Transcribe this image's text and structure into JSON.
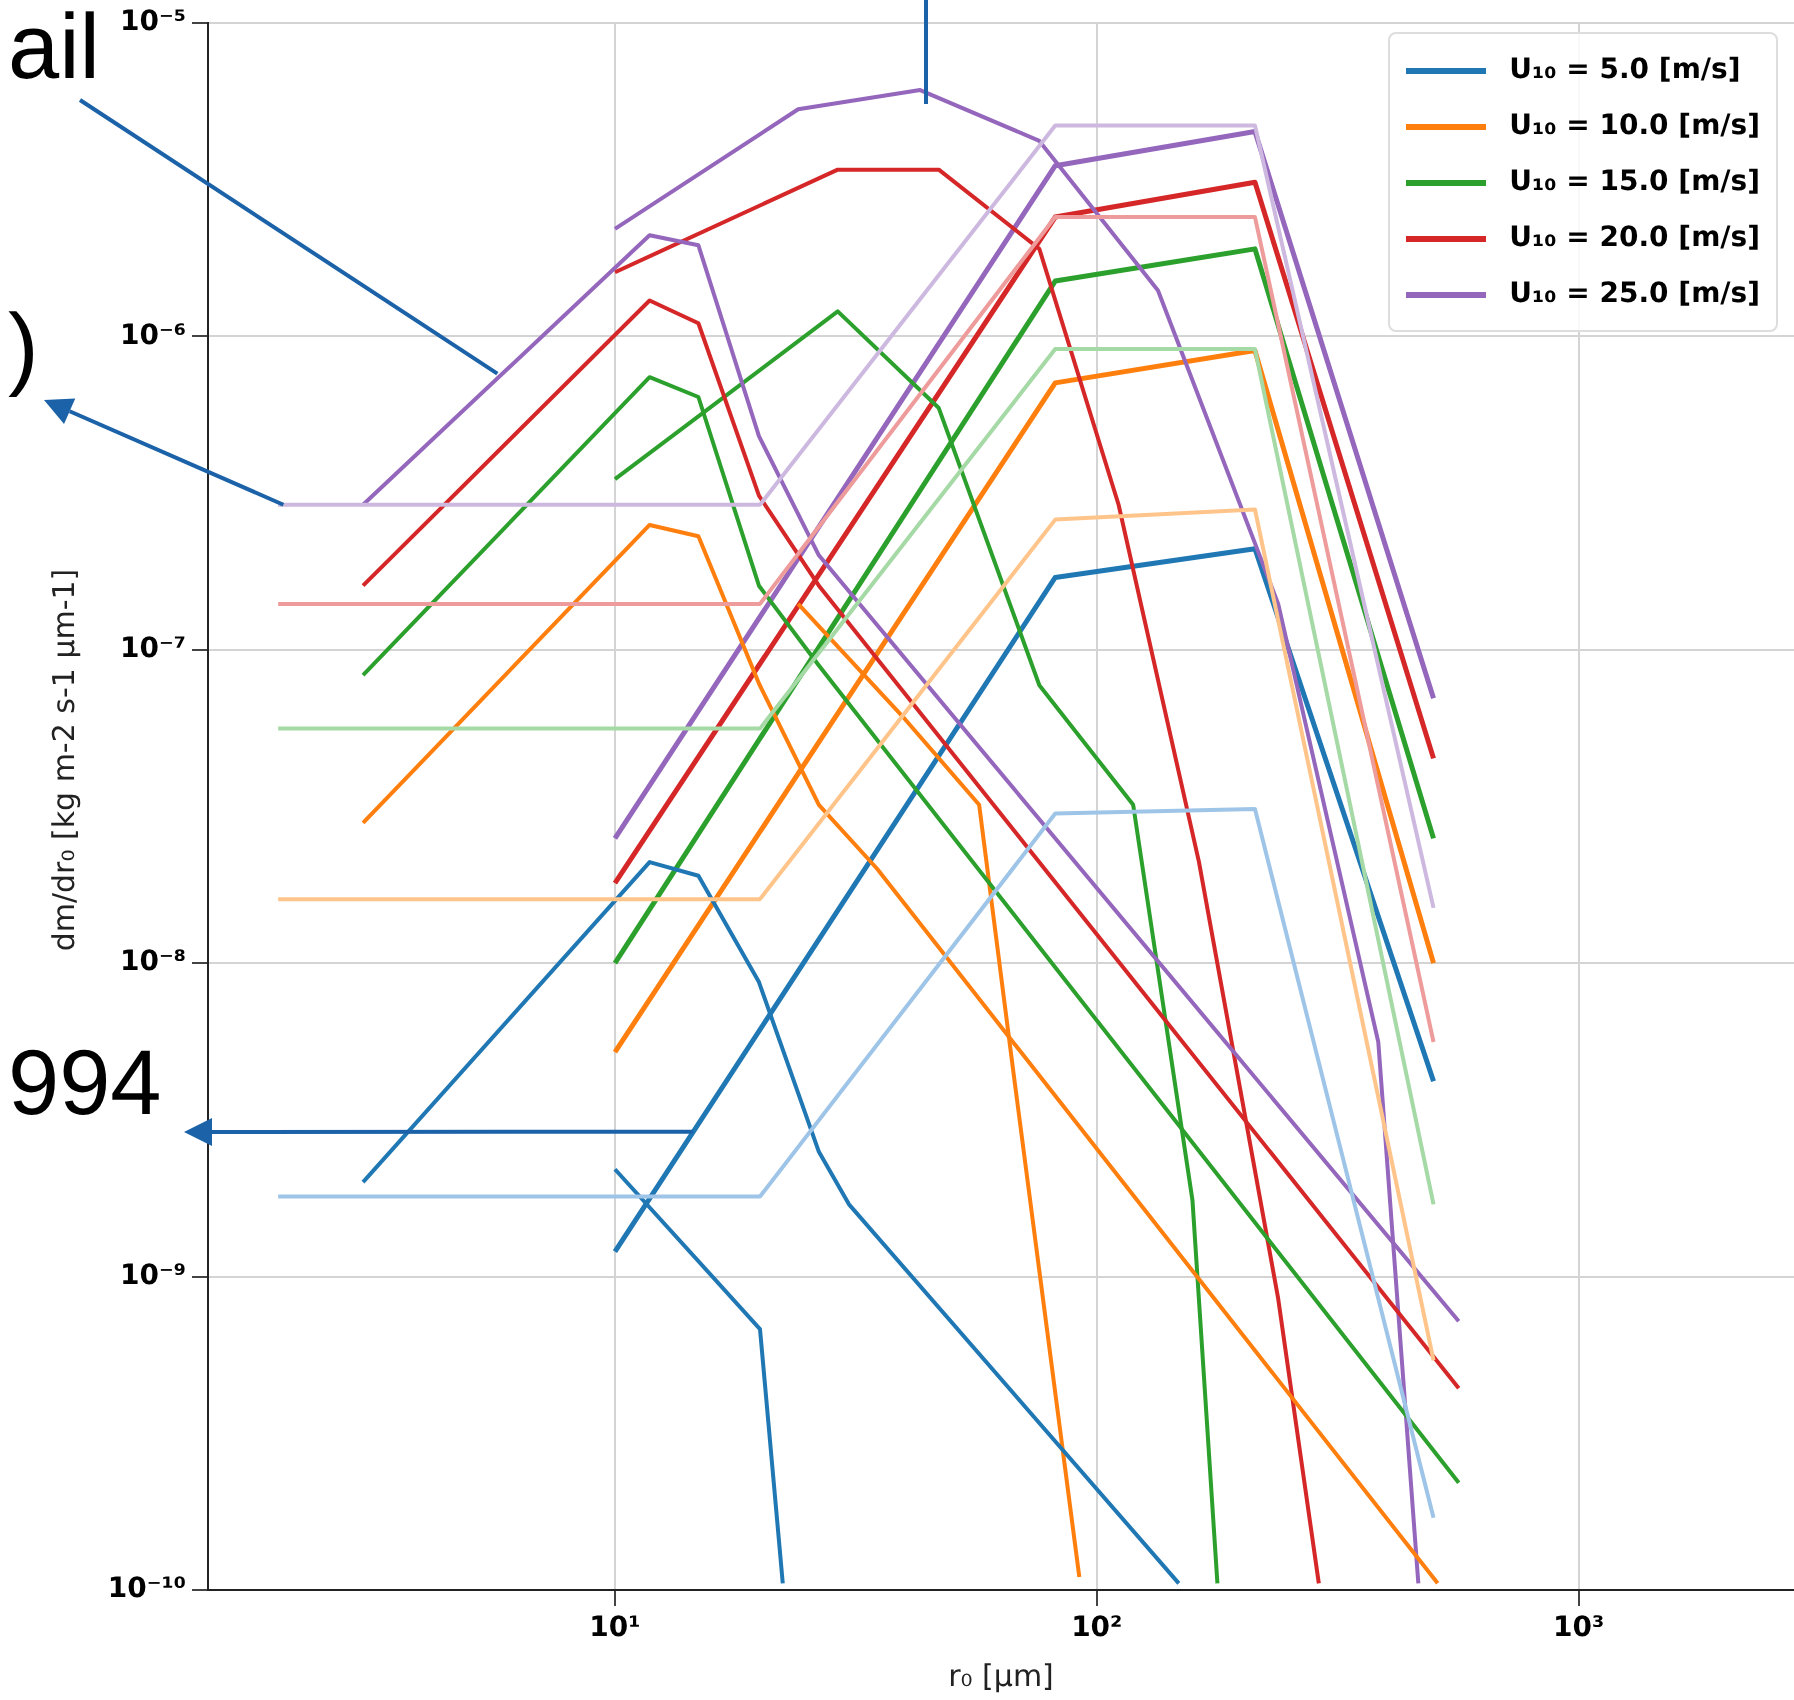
{
  "chart_data": {
    "type": "line",
    "xlabel": "r₀ [µm]",
    "ylabel": "dm/dr₀ [kg m-2 s-1 µm-1]",
    "annotations": [
      {
        "text": "ail",
        "x": 5.7,
        "y": 7.6e-07
      },
      {
        "text": ")",
        "x": 2.05,
        "y": 2.9e-07
      },
      {
        "text": "994",
        "x": 14.5,
        "y": 2.9e-09
      }
    ],
    "log": "xy",
    "grid": true,
    "legend": "top right",
    "xlim": [
      1.43,
      2800
    ],
    "xticks": [
      {
        "value": 10,
        "label": "10¹"
      },
      {
        "value": 100,
        "label": "10²"
      },
      {
        "value": 1000,
        "label": "10³"
      }
    ],
    "ylim": [
      1e-10,
      1e-05
    ],
    "yticks": [
      {
        "value": 1e-10,
        "label": "10⁻¹⁰"
      },
      {
        "value": 1e-09,
        "label": "10⁻⁹"
      },
      {
        "value": 1e-08,
        "label": "10⁻⁸"
      },
      {
        "value": 1e-07,
        "label": "10⁻⁷"
      },
      {
        "value": 1e-06,
        "label": "10⁻⁶"
      },
      {
        "value": 1e-05,
        "label": "10⁻⁵"
      }
    ],
    "series": [
      {
        "color": "#9ec5e8",
        "x": [
          2,
          20,
          82,
          213,
          500
        ],
        "values": [
          1.8e-09,
          1.8e-09,
          3e-08,
          3.1e-08,
          1.7e-10
        ]
      },
      {
        "color": "#ffc48a",
        "x": [
          2,
          20,
          82,
          213,
          500
        ],
        "values": [
          1.6e-08,
          1.6e-08,
          2.6e-07,
          2.8e-07,
          5.4e-10
        ]
      },
      {
        "color": "#a5d9a5",
        "x": [
          2,
          20,
          82,
          213,
          500
        ],
        "values": [
          5.6e-08,
          5.6e-08,
          9.1e-07,
          9.1e-07,
          1.7e-09
        ]
      },
      {
        "color": "#ee9b9b",
        "x": [
          2,
          20,
          82,
          213,
          500
        ],
        "values": [
          1.4e-07,
          1.4e-07,
          2.4e-06,
          2.4e-06,
          5.6e-09
        ]
      },
      {
        "color": "#cdb8e0",
        "x": [
          2,
          20,
          82,
          213,
          500
        ],
        "values": [
          2.9e-07,
          2.9e-07,
          4.7e-06,
          4.7e-06,
          1.5e-08
        ]
      },
      {
        "color": "#9467bd",
        "x": [
          3,
          11.8,
          14.9,
          19.9,
          26.5,
          564
        ],
        "values": [
          2.9e-07,
          2.1e-06,
          1.95e-06,
          4.8e-07,
          2e-07,
          7.2e-10
        ]
      },
      {
        "color": "#d62728",
        "x": [
          3,
          11.8,
          14.9,
          19.9,
          26.5,
          564
        ],
        "values": [
          1.6e-07,
          1.3e-06,
          1.1e-06,
          3.1e-07,
          1.6e-07,
          4.4e-10
        ]
      },
      {
        "color": "#2ca02c",
        "x": [
          3,
          11.8,
          14.9,
          19.9,
          26.5,
          564
        ],
        "values": [
          8.3e-08,
          7.4e-07,
          6.4e-07,
          1.6e-07,
          8.9e-08,
          2.2e-10
        ]
      },
      {
        "color": "#ff7f0e",
        "x": [
          3,
          11.8,
          14.9,
          19.9,
          26.5,
          35,
          510
        ],
        "values": [
          2.8e-08,
          2.5e-07,
          2.3e-07,
          7.8e-08,
          3.2e-08,
          2e-08,
          1.05e-10
        ]
      },
      {
        "color": "#1f77b4",
        "x": [
          3,
          11.8,
          14.9,
          19.9,
          26.5,
          30.6,
          148
        ],
        "values": [
          2e-09,
          2.1e-08,
          1.9e-08,
          8.7e-09,
          2.5e-09,
          1.7e-09,
          1.05e-10
        ]
      },
      {
        "color": "#ff7f0e",
        "x": [
          24,
          40,
          57,
          67,
          92
        ],
        "values": [
          1.4e-07,
          6e-08,
          3.2e-08,
          4.6e-09,
          1.1e-10
        ]
      },
      {
        "color": "#2ca02c",
        "x": [
          10,
          29,
          47,
          76,
          119,
          158,
          178
        ],
        "values": [
          3.5e-07,
          1.2e-06,
          5.9e-07,
          7.7e-08,
          3.2e-08,
          1.75e-09,
          1.05e-10
        ]
      },
      {
        "color": "#d62728",
        "x": [
          10,
          29,
          47,
          76,
          111,
          163,
          238,
          289
        ],
        "values": [
          1.6e-06,
          3.4e-06,
          3.4e-06,
          1.9e-06,
          2.9e-07,
          2.1e-08,
          8.5e-10,
          1.05e-10
        ]
      },
      {
        "color": "#9467bd",
        "x": [
          10,
          24,
          43,
          76,
          134,
          238,
          384,
          465
        ],
        "values": [
          2.2e-06,
          5.3e-06,
          6.1e-06,
          4.2e-06,
          1.4e-06,
          1.4e-07,
          5.6e-09,
          1.05e-10
        ]
      },
      {
        "color": "#1f77b4",
        "x": [
          10,
          20,
          22.3
        ],
        "values": [
          2.2e-09,
          6.8e-10,
          1.05e-10
        ]
      },
      {
        "name": "U₁₀ = 5.0 [m/s]",
        "color": "#1f77b4",
        "x": [
          10,
          82,
          213,
          500
        ],
        "values": [
          1.2e-09,
          1.7e-07,
          2.1e-07,
          4.2e-09
        ]
      },
      {
        "name": "U₁₀ = 10.0 [m/s]",
        "color": "#ff7f0e",
        "x": [
          10,
          82,
          213,
          500
        ],
        "values": [
          5.2e-09,
          7.1e-07,
          9e-07,
          1e-08
        ]
      },
      {
        "name": "U₁₀ = 15.0 [m/s]",
        "color": "#2ca02c",
        "x": [
          10,
          82,
          213,
          500
        ],
        "values": [
          1e-08,
          1.5e-06,
          1.9e-06,
          2.5e-08
        ]
      },
      {
        "name": "U₁₀ = 20.0 [m/s]",
        "color": "#d62728",
        "x": [
          10,
          82,
          213,
          500
        ],
        "values": [
          1.8e-08,
          2.4e-06,
          3.1e-06,
          4.5e-08
        ]
      },
      {
        "name": "U₁₀ = 25.0 [m/s]",
        "color": "#9467bd",
        "x": [
          10,
          82,
          213,
          500
        ],
        "values": [
          2.5e-08,
          3.5e-06,
          4.5e-06,
          7e-08
        ]
      }
    ]
  }
}
